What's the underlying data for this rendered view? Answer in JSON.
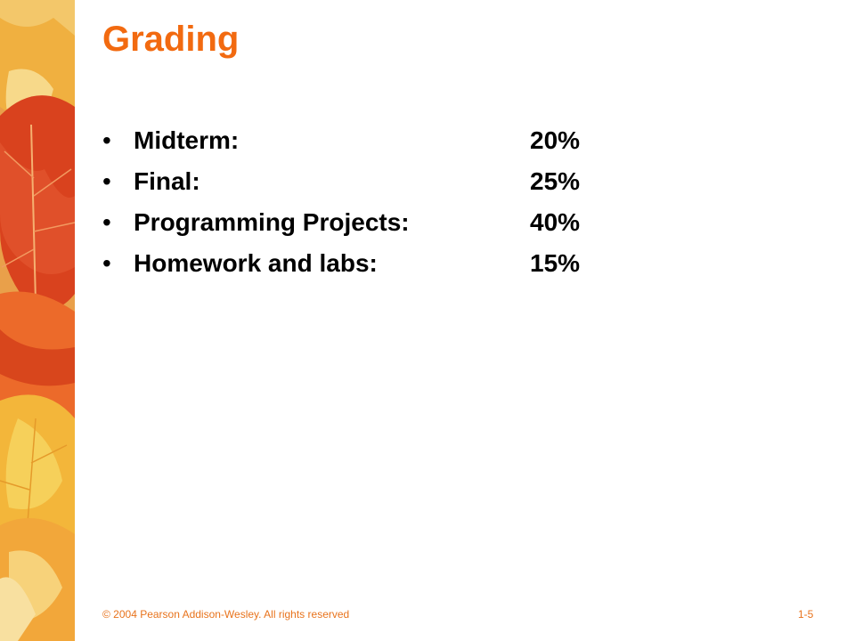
{
  "slide": {
    "title": "Grading",
    "bullet_marker": "•",
    "items": [
      {
        "label": "Midterm:",
        "value": "20%"
      },
      {
        "label": "Final:",
        "value": "25%"
      },
      {
        "label": "Programming Projects:",
        "value": "40%"
      },
      {
        "label": "Homework and labs:",
        "value": "15%"
      }
    ]
  },
  "footer": {
    "copyright": "© 2004 Pearson Addison-Wesley. All rights reserved",
    "slide_number": "1-5"
  },
  "colors": {
    "title": "#f26a10",
    "footer": "#e8731c",
    "leaf_red": "#d9421e",
    "leaf_orange": "#f08a2c",
    "leaf_yellow": "#f2c23a"
  }
}
